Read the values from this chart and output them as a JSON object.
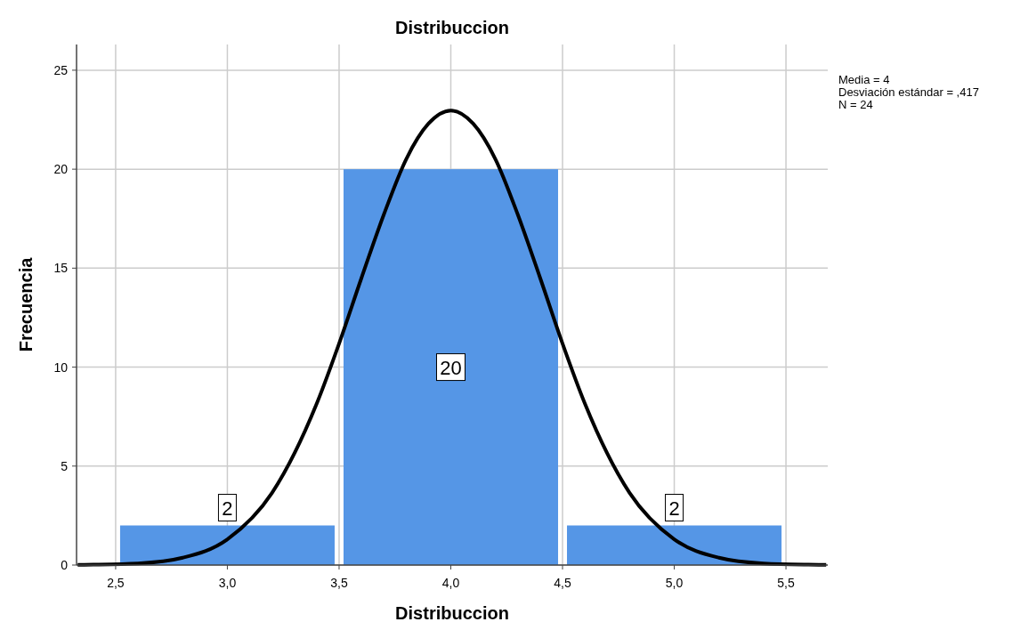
{
  "chart_data": {
    "type": "histogram",
    "title": "Distribuccion",
    "xlabel": "Distribuccion",
    "ylabel": "Frecuencia",
    "bins": [
      2.5,
      3.5,
      4.5,
      5.5
    ],
    "series": [
      {
        "color": "#5596e6",
        "values": [
          2,
          20,
          2
        ],
        "value_labels": [
          "2",
          "20",
          "2"
        ]
      },
      {
        "type": "line",
        "color": "#000000",
        "x": [
          2.33,
          2.4,
          2.6,
          2.8,
          3.0,
          3.2,
          3.4,
          3.5,
          3.6,
          3.7,
          3.8,
          3.9,
          4.0,
          4.1,
          4.2,
          4.3,
          4.4,
          4.5,
          4.6,
          4.8,
          5.0,
          5.2,
          5.4,
          5.6,
          5.68
        ],
        "values": [
          0.01,
          0.02,
          0.08,
          0.37,
          1.3,
          3.65,
          8.16,
          11.19,
          14.5,
          17.7,
          20.5,
          22.3,
          22.96,
          22.3,
          20.5,
          17.7,
          14.5,
          11.19,
          8.16,
          3.65,
          1.3,
          0.37,
          0.08,
          0.02,
          0.01
        ]
      }
    ],
    "xlim": [
      2.325,
      5.687
    ],
    "ylim": [
      0,
      26.3
    ],
    "xticks": [
      {
        "value": 2.5,
        "label": "2,5"
      },
      {
        "value": 3.0,
        "label": "3,0"
      },
      {
        "value": 3.5,
        "label": "3,5"
      },
      {
        "value": 4.0,
        "label": "4,0"
      },
      {
        "value": 4.5,
        "label": "4,5"
      },
      {
        "value": 5.0,
        "label": "5,0"
      },
      {
        "value": 5.5,
        "label": "5,5"
      }
    ],
    "yticks": [
      0,
      5,
      10,
      15,
      20,
      25
    ],
    "grid": true,
    "marker": "none",
    "annotations": [
      "Media = 4",
      "Desviación estándar = ,417",
      "N = 24"
    ]
  }
}
